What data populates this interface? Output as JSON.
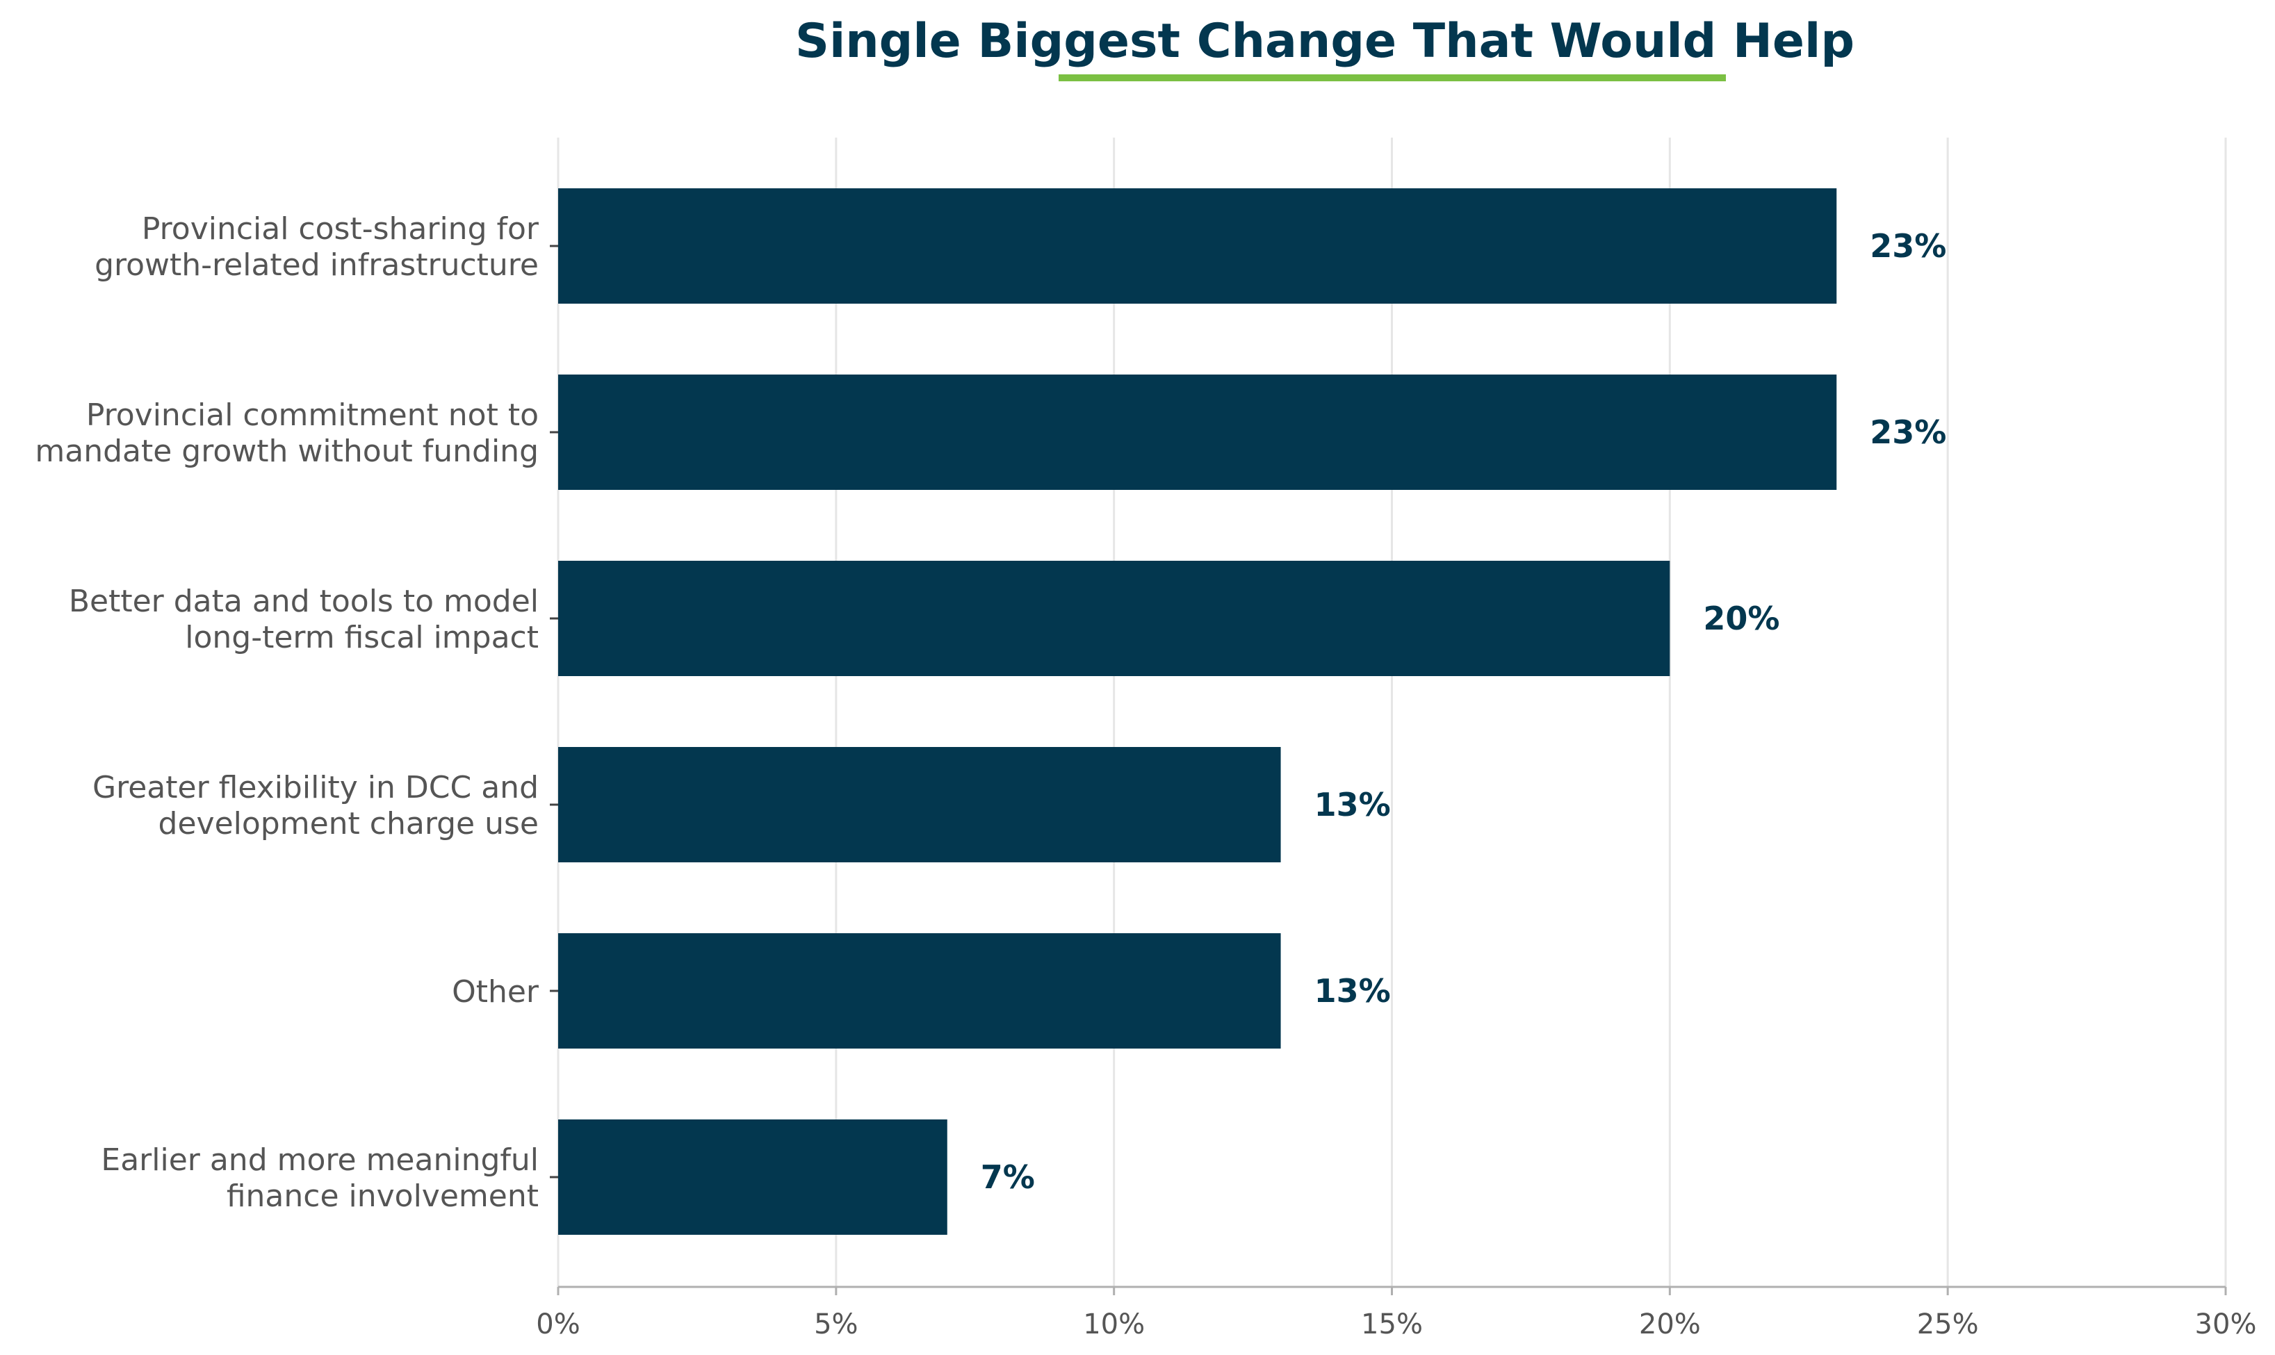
{
  "chart_data": {
    "type": "bar",
    "orientation": "horizontal",
    "title": "Single Biggest Change That Would Help",
    "categories": [
      [
        "Provincial cost-sharing for",
        "growth-related infrastructure"
      ],
      [
        "Provincial commitment not to",
        "mandate growth without funding"
      ],
      [
        "Better data and tools to model",
        "long-term fiscal impact"
      ],
      [
        "Greater flexibility in DCC and",
        "development charge use"
      ],
      [
        "Other"
      ],
      [
        "Earlier and more meaningful",
        "finance involvement"
      ]
    ],
    "values": [
      23,
      23,
      20,
      13,
      13,
      7
    ],
    "value_labels": [
      "23%",
      "23%",
      "20%",
      "13%",
      "13%",
      "7%"
    ],
    "xlim": [
      0,
      30
    ],
    "x_ticks": [
      0,
      5,
      10,
      15,
      20,
      25,
      30
    ],
    "x_tick_labels": [
      "0%",
      "5%",
      "10%",
      "15%",
      "20%",
      "25%",
      "30%"
    ],
    "xlabel": "",
    "ylabel": "",
    "grid": "vertical",
    "legend": "none",
    "colors": {
      "bar": "#03374f",
      "title": "#03374f",
      "title_underline": "#7bc043",
      "grid": "#e6e6e6",
      "axis": "#b0b0b0",
      "label_text": "#555555"
    }
  }
}
